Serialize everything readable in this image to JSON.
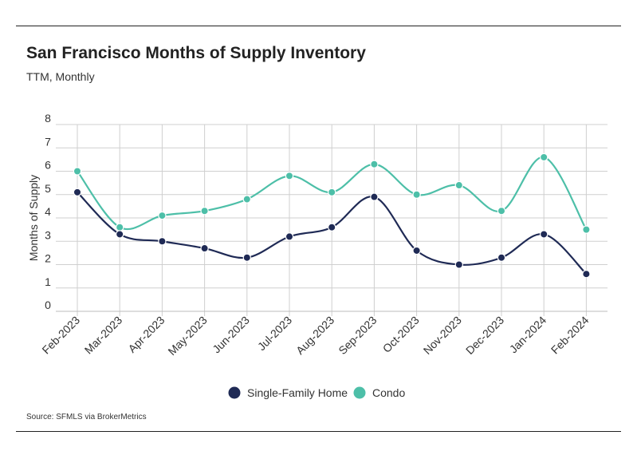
{
  "title": "San Francisco Months of Supply Inventory",
  "subtitle": "TTM, Monthly",
  "source": "Source:  SFMLS via BrokerMetrics",
  "colors": {
    "single_family": "#1f2a55",
    "condo": "#4dbfa8",
    "grid": "#cfcfcf"
  },
  "chart_data": {
    "type": "line",
    "title": "San Francisco Months of Supply Inventory",
    "subtitle": "TTM, Monthly",
    "xlabel": "",
    "ylabel": "Months of Supply",
    "ylim": [
      0,
      8
    ],
    "yticks": [
      "0",
      "1",
      "2",
      "3",
      "4",
      "5",
      "6",
      "7",
      "8"
    ],
    "categories": [
      "Feb-2023",
      "Mar-2023",
      "Apr-2023",
      "May-2023",
      "Jun-2023",
      "Jul-2023",
      "Aug-2023",
      "Sep-2023",
      "Oct-2023",
      "Nov-2023",
      "Dec-2023",
      "Jan-2024",
      "Feb-2024"
    ],
    "grid": true,
    "legend_position": "bottom-center",
    "series": [
      {
        "name": "Single-Family Home",
        "color": "#1f2a55",
        "values": [
          5.1,
          3.3,
          3.0,
          2.7,
          2.3,
          3.2,
          3.6,
          4.9,
          2.6,
          2.0,
          2.3,
          3.3,
          1.6
        ]
      },
      {
        "name": "Condo",
        "color": "#4dbfa8",
        "values": [
          6.0,
          3.6,
          4.1,
          4.3,
          4.8,
          5.8,
          5.1,
          6.3,
          5.0,
          5.4,
          4.3,
          6.6,
          3.5
        ]
      }
    ]
  }
}
